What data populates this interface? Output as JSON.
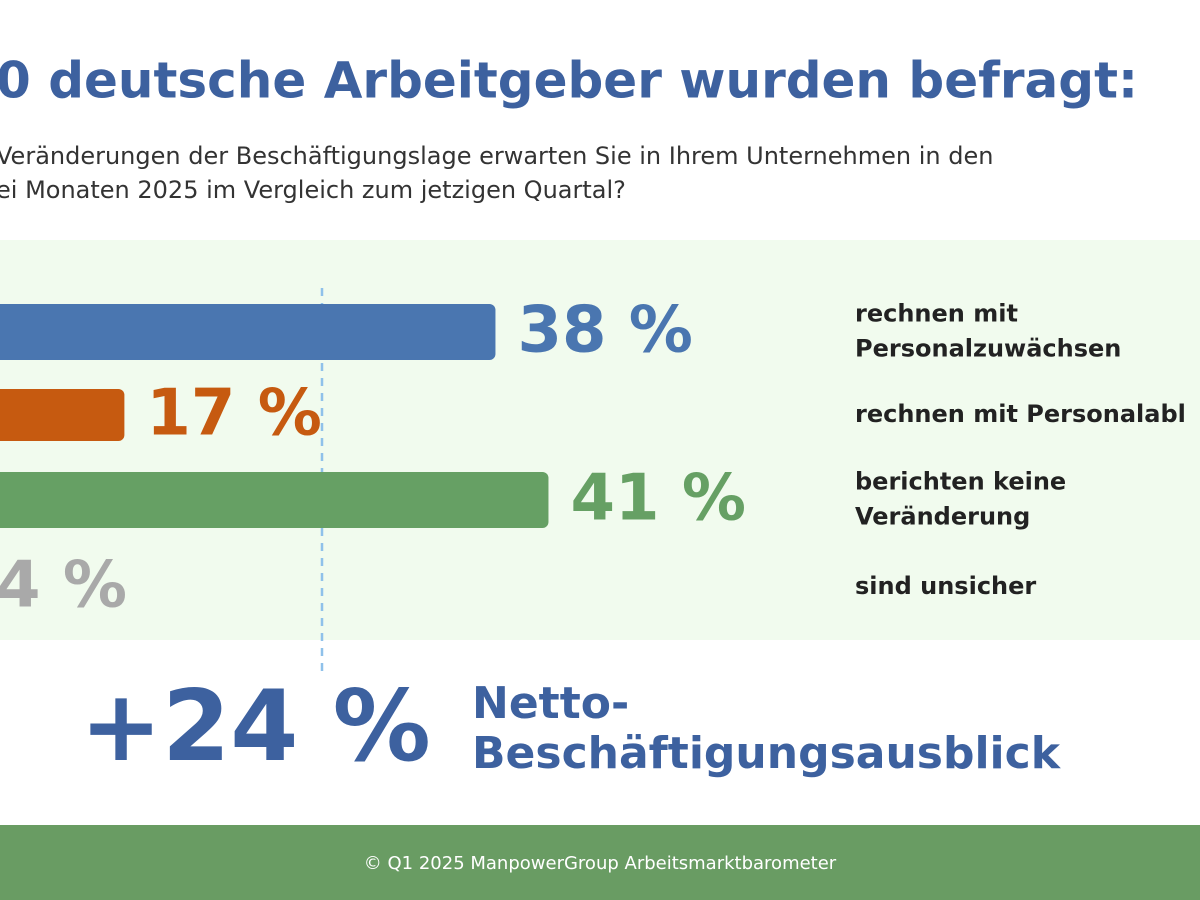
{
  "chart_data": {
    "type": "bar",
    "orientation": "horizontal",
    "title": "0 deutsche Arbeitgeber wurden befragt:",
    "subtitle": [
      "Veränderungen der Beschäftigungslage erwarten Sie in Ihrem Unternehmen in den",
      "ei Monaten 2025 im Vergleich zum jetzigen Quartal?"
    ],
    "categories": [
      [
        "rechnen mit",
        "Personalzuwächsen"
      ],
      [
        "rechnen mit Personalabl"
      ],
      [
        "berichten keine",
        "Veränderung"
      ],
      [
        "sind unsicher"
      ]
    ],
    "values": [
      38,
      17,
      41,
      4
    ],
    "value_labels": [
      "38 %",
      "17 %",
      "41 %",
      "4 %"
    ],
    "colors": [
      "#4a76b0",
      "#c65a10",
      "#66a064",
      "#a9a9a9"
    ],
    "net": {
      "value": 24,
      "label": "+24 %"
    },
    "net_caption": [
      "Netto-",
      "Beschäftigungsausblick"
    ],
    "footer": "© Q1 2025 ManpowerGroup Arbeitsmarktbarometer"
  }
}
